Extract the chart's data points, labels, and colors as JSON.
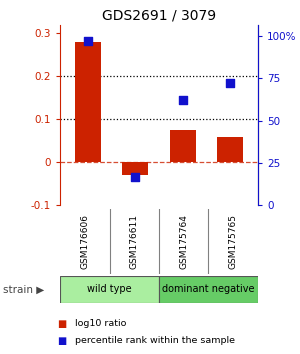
{
  "title": "GDS2691 / 3079",
  "samples": [
    "GSM176606",
    "GSM176611",
    "GSM175764",
    "GSM175765"
  ],
  "log10_ratio": [
    0.28,
    -0.03,
    0.075,
    0.06
  ],
  "percentile_rank": [
    97,
    17,
    62,
    72
  ],
  "bar_color": "#cc2200",
  "dot_color": "#1111cc",
  "ylim_left": [
    -0.1,
    0.32
  ],
  "ylim_right": [
    0,
    106.67
  ],
  "yticks_left": [
    -0.1,
    0.0,
    0.1,
    0.2,
    0.3
  ],
  "yticks_right": [
    0,
    25,
    50,
    75,
    100
  ],
  "ytick_labels_right": [
    "0",
    "25",
    "50",
    "75",
    "100%"
  ],
  "hlines_dotted": [
    0.1,
    0.2
  ],
  "hline_dashed": 0.0,
  "strain_groups": [
    {
      "label": "wild type",
      "samples": [
        0,
        1
      ],
      "color": "#aaeea0"
    },
    {
      "label": "dominant negative",
      "samples": [
        2,
        3
      ],
      "color": "#66cc66"
    }
  ],
  "strain_label": "strain",
  "legend_items": [
    {
      "color": "#cc2200",
      "label": "log10 ratio"
    },
    {
      "color": "#1111cc",
      "label": "percentile rank within the sample"
    }
  ],
  "background_color": "#ffffff",
  "bar_width": 0.55,
  "dot_size": 35
}
